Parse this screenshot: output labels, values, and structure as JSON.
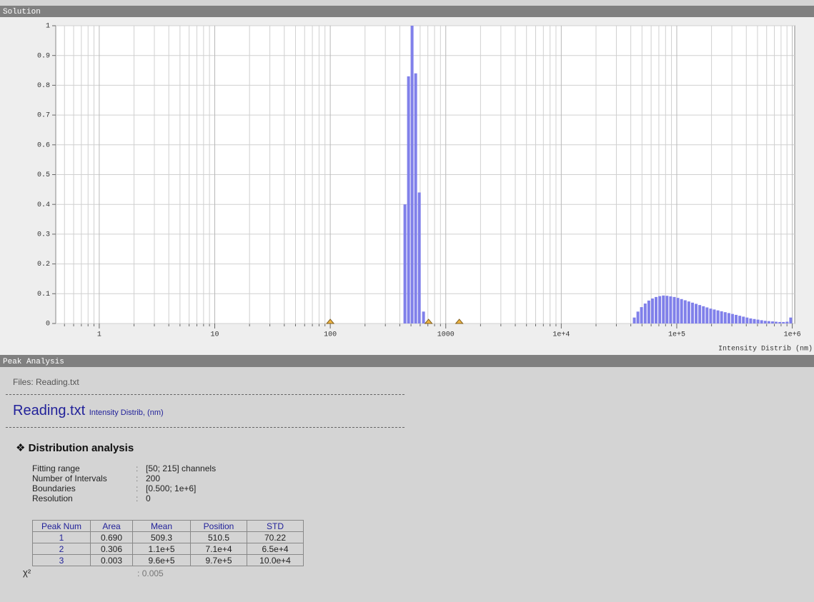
{
  "chart_data": {
    "type": "bar",
    "title": "Solution",
    "x_label": "Intensity Distrib (nm)",
    "x": [
      443,
      476,
      511,
      549,
      590,
      642,
      42900,
      46100,
      49500,
      53300,
      57300,
      61600,
      66200,
      71200,
      76600,
      82300,
      88500,
      95200,
      102300,
      110000,
      118300,
      127200,
      136800,
      147100,
      158100,
      170100,
      182800,
      196700,
      211300,
      227300,
      244300,
      262700,
      282500,
      303700,
      326600,
      351200,
      377600,
      406000,
      436500,
      469400,
      504700,
      542700,
      583400,
      627400,
      674500,
      725300,
      779800,
      838500,
      901600,
      969400
    ],
    "values": [
      0.4,
      0.83,
      1.0,
      0.84,
      0.44,
      0.04,
      0.02,
      0.04,
      0.055,
      0.067,
      0.077,
      0.084,
      0.089,
      0.092,
      0.094,
      0.093,
      0.091,
      0.089,
      0.086,
      0.082,
      0.078,
      0.074,
      0.07,
      0.066,
      0.062,
      0.058,
      0.054,
      0.05,
      0.047,
      0.044,
      0.041,
      0.038,
      0.035,
      0.032,
      0.029,
      0.026,
      0.023,
      0.02,
      0.017,
      0.015,
      0.013,
      0.011,
      0.009,
      0.008,
      0.007,
      0.006,
      0.005,
      0.005,
      0.006,
      0.02
    ],
    "color": "#8080ea",
    "markers": [
      100,
      710,
      1310
    ],
    "marker_color": "#f0b440",
    "xlim": [
      0.42,
      1050000
    ],
    "x_log": true,
    "xticks": [
      1,
      10,
      100,
      1000,
      {
        "value": 10000,
        "label": "1e+4"
      },
      {
        "value": 100000,
        "label": "1e+5"
      },
      {
        "value": 1000000,
        "label": "1e+6"
      }
    ],
    "ylim": [
      0,
      1
    ],
    "yticks": [
      0,
      0.1,
      0.2,
      0.3,
      0.4,
      0.5,
      0.6,
      0.7,
      0.8,
      0.9,
      1
    ],
    "grid": true,
    "minor_grid": true
  },
  "peak_analysis": {
    "header": "Peak Analysis",
    "files": "Files: Reading.txt",
    "file_title": "Reading.txt",
    "file_subtitle": "Intensity Distrib, (nm)",
    "section_title": "Distribution analysis",
    "separator": ":",
    "params": [
      {
        "label": "Fitting range",
        "value": "[50; 215] channels"
      },
      {
        "label": "Number of Intervals",
        "value": "200"
      },
      {
        "label": "Boundaries",
        "value": "[0.500; 1e+6]"
      },
      {
        "label": "Resolution",
        "value": "0"
      }
    ],
    "table": {
      "columns": [
        "Peak Num",
        "Area",
        "Mean",
        "Position",
        "STD"
      ],
      "rows": [
        [
          1,
          "0.690",
          "509.3",
          "510.5",
          "70.22"
        ],
        [
          2,
          "0.306",
          "1.1e+5",
          "7.1e+4",
          "6.5e+4"
        ],
        [
          3,
          "0.003",
          "9.6e+5",
          "9.7e+5",
          "10.0e+4"
        ]
      ]
    },
    "chi2": {
      "label": "χ²",
      "value": "0.005"
    }
  }
}
